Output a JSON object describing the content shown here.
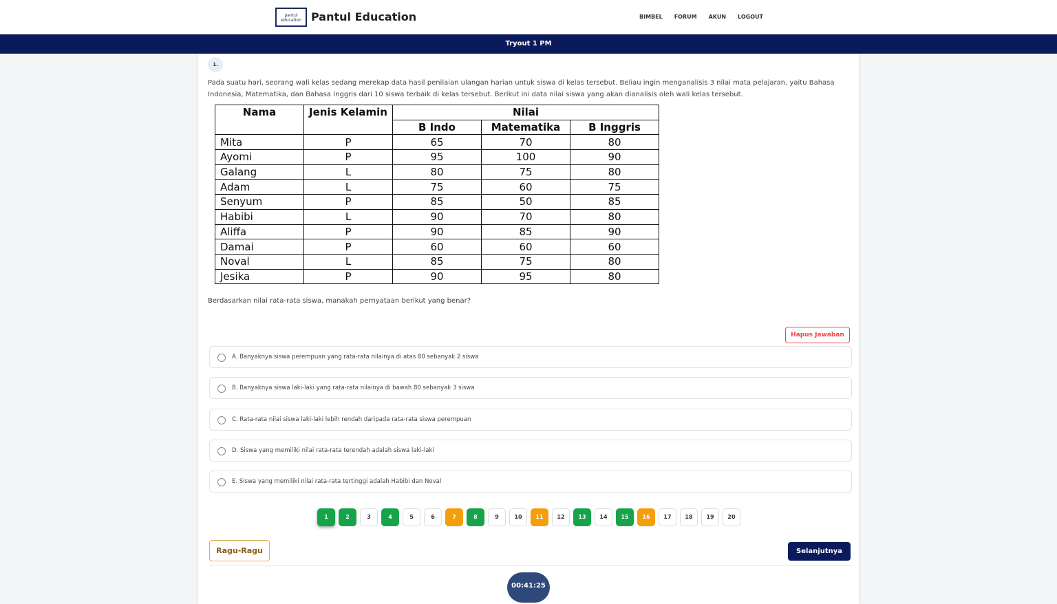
{
  "header": {
    "logo_text": "pantul education",
    "brand": "Pantul Education",
    "nav": [
      "BIMBEL",
      "FORUM",
      "AKUN",
      "LOGOUT"
    ]
  },
  "banner": "Tryout 1 PM",
  "question": {
    "number": "1.",
    "text": "Pada suatu hari, seorang wali kelas sedang merekap data hasil penilaian ulangan harian untuk siswa di kelas tersebut. Beliau ingin menganalisis 3 nilai mata pelajaran, yaitu Bahasa Indonesia, Matematika, dan Bahasa Inggris dari 10 siswa terbaik di kelas tersebut. Berikut ini data nilai siswa yang akan dianalisis oleh wali kelas tersebut.",
    "table": {
      "group_headers": [
        "Nama",
        "Jenis Kelamin",
        "Nilai"
      ],
      "sub_headers": [
        "B Indo",
        "Matematika",
        "B Inggris"
      ],
      "rows": [
        [
          "Mita",
          "P",
          65,
          70,
          80
        ],
        [
          "Ayomi",
          "P",
          95,
          100,
          90
        ],
        [
          "Galang",
          "L",
          80,
          75,
          80
        ],
        [
          "Adam",
          "L",
          75,
          60,
          75
        ],
        [
          "Senyum",
          "P",
          85,
          50,
          85
        ],
        [
          "Habibi",
          "L",
          90,
          70,
          80
        ],
        [
          "Aliffa",
          "P",
          90,
          85,
          90
        ],
        [
          "Damai",
          "P",
          60,
          60,
          60
        ],
        [
          "Noval",
          "L",
          85,
          75,
          80
        ],
        [
          "Jesika",
          "P",
          90,
          95,
          80
        ]
      ]
    },
    "prompt": "Berdasarkan nilai rata-rata siswa, manakah pernyataan berikut yang benar?"
  },
  "clear_button": "Hapus Jawaban",
  "options": [
    "A. Banyaknya siswa perempuan yang rata-rata nilainya di atas 80 sebanyak 2 siswa",
    "B. Banyaknya siswa laki-laki yang rata-rata nilainya di bawah 80 sebanyak 3 siswa",
    "C. Rata-rata nilai siswa laki-laki lebih rendah daripada rata-rata siswa perempuan",
    "D. Siswa yang memiliki nilai rata-rata terendah adalah siswa laki-laki",
    "E. Siswa yang memiliki nilai rata-rata tertinggi adalah Habibi dan Noval"
  ],
  "pagination": [
    {
      "label": "1",
      "color": "#16a34a"
    },
    {
      "label": "2",
      "color": "#16a34a"
    },
    {
      "label": "3",
      "color": "#ffffff"
    },
    {
      "label": "4",
      "color": "#16a34a"
    },
    {
      "label": "5",
      "color": "#ffffff"
    },
    {
      "label": "6",
      "color": "#ffffff"
    },
    {
      "label": "7",
      "color": "#f59e0b"
    },
    {
      "label": "8",
      "color": "#16a34a"
    },
    {
      "label": "9",
      "color": "#ffffff"
    },
    {
      "label": "10",
      "color": "#ffffff"
    },
    {
      "label": "11",
      "color": "#f59e0b"
    },
    {
      "label": "12",
      "color": "#ffffff"
    },
    {
      "label": "13",
      "color": "#16a34a"
    },
    {
      "label": "14",
      "color": "#ffffff"
    },
    {
      "label": "15",
      "color": "#16a34a"
    },
    {
      "label": "16",
      "color": "#f59e0b"
    },
    {
      "label": "17",
      "color": "#ffffff"
    },
    {
      "label": "18",
      "color": "#ffffff"
    },
    {
      "label": "19",
      "color": "#ffffff"
    },
    {
      "label": "20",
      "color": "#ffffff"
    }
  ],
  "doubt_button": "Ragu-Ragu",
  "next_button": "Selanjutnya",
  "timer": "00:41:25"
}
